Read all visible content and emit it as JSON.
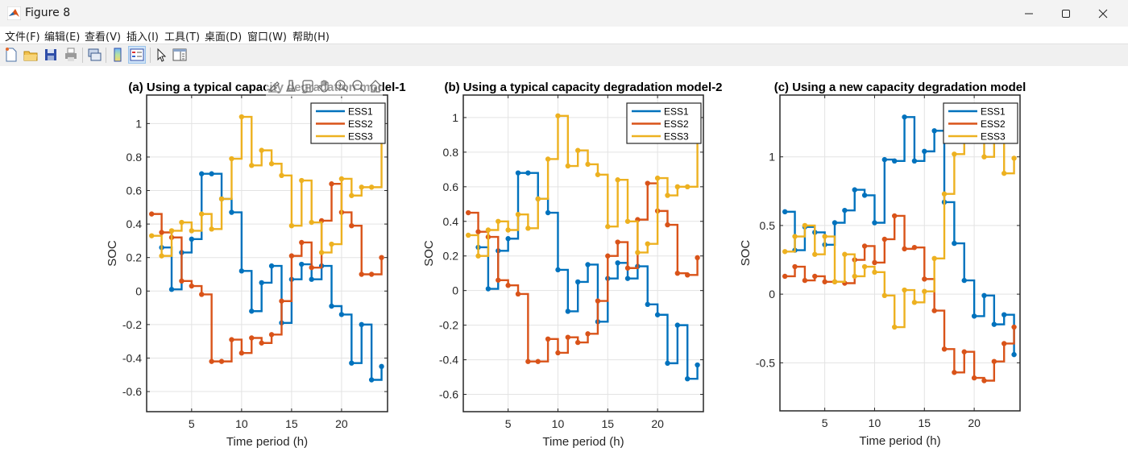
{
  "window": {
    "title": "Figure 8",
    "controls": [
      "minimize",
      "maximize",
      "close"
    ]
  },
  "menubar": {
    "items": [
      "文件(F)",
      "编辑(E)",
      "查看(V)",
      "插入(I)",
      "工具(T)",
      "桌面(D)",
      "窗口(W)",
      "帮助(H)"
    ]
  },
  "toolbar": {
    "buttons": [
      "new-figure-icon",
      "open-file-icon",
      "save-icon",
      "print-icon",
      "link-plot-icon",
      "colorbar-icon",
      "legend-icon",
      "edit-plot-pointer-icon",
      "property-inspector-icon"
    ],
    "active": "legend-icon"
  },
  "axes_toolbar": {
    "buttons": [
      "brush-edit-icon",
      "data-brush-icon",
      "data-tips-icon",
      "pan-hand-icon",
      "zoom-in-icon",
      "zoom-out-icon",
      "restore-view-home-icon"
    ]
  },
  "colors": {
    "ESS1": "#0072bd",
    "ESS2": "#d95319",
    "ESS3": "#edb120",
    "grid": "#e3e3e3",
    "axis": "#262626"
  },
  "chart_data": [
    {
      "type": "line",
      "style": "step-post with markers",
      "title": "(a) Using a typical capacity degradation model-1",
      "xlabel": "Time period (h)",
      "ylabel": "SOC",
      "xlim": [
        0.5,
        24.6
      ],
      "ylim": [
        -0.72,
        1.17
      ],
      "xticks": [
        5,
        10,
        15,
        20
      ],
      "yticks": [
        -0.6,
        -0.4,
        -0.2,
        0,
        0.2,
        0.4,
        0.6,
        0.8,
        1
      ],
      "ytick_labels": [
        "-0.6",
        "-0.4",
        "-0.2",
        "0",
        "0.2",
        "0.4",
        "0.6",
        "0.8",
        "1"
      ],
      "grid": true,
      "legend": {
        "entries": [
          "ESS1",
          "ESS2",
          "ESS3"
        ],
        "location": "top-right"
      },
      "x": [
        1,
        2,
        3,
        4,
        5,
        6,
        7,
        8,
        9,
        10,
        11,
        12,
        13,
        14,
        15,
        16,
        17,
        18,
        19,
        20,
        21,
        22,
        23,
        24
      ],
      "series": [
        {
          "name": "ESS1",
          "values": [
            null,
            0.26,
            0.01,
            0.23,
            0.31,
            0.7,
            0.7,
            0.55,
            0.47,
            0.12,
            -0.12,
            0.05,
            0.15,
            -0.19,
            0.07,
            0.16,
            0.07,
            0.15,
            -0.09,
            -0.14,
            -0.43,
            -0.2,
            -0.53,
            -0.45
          ]
        },
        {
          "name": "ESS2",
          "values": [
            0.46,
            0.35,
            0.32,
            0.06,
            0.03,
            -0.02,
            -0.42,
            -0.42,
            -0.29,
            -0.37,
            -0.28,
            -0.31,
            -0.26,
            -0.06,
            0.21,
            0.29,
            0.14,
            0.42,
            0.64,
            0.47,
            0.39,
            0.1,
            0.1,
            0.2
          ]
        },
        {
          "name": "ESS3",
          "values": [
            0.33,
            0.21,
            0.36,
            0.41,
            0.36,
            0.46,
            0.37,
            0.55,
            0.79,
            1.04,
            0.75,
            0.84,
            0.76,
            0.69,
            0.39,
            0.66,
            0.41,
            0.23,
            0.28,
            0.67,
            0.57,
            0.62,
            0.62,
            0.97
          ]
        }
      ]
    },
    {
      "type": "line",
      "style": "step-post with markers",
      "title": "(b) Using a typical capacity degradation model-2",
      "xlabel": "Time period (h)",
      "ylabel": "SOC",
      "xlim": [
        0.5,
        24.6
      ],
      "ylim": [
        -0.7,
        1.13
      ],
      "xticks": [
        5,
        10,
        15,
        20
      ],
      "yticks": [
        -0.6,
        -0.4,
        -0.2,
        0,
        0.2,
        0.4,
        0.6,
        0.8,
        1
      ],
      "ytick_labels": [
        "-0.6",
        "-0.4",
        "-0.2",
        "0",
        "0.2",
        "0.4",
        "0.6",
        "0.8",
        "1"
      ],
      "grid": true,
      "legend": {
        "entries": [
          "ESS1",
          "ESS2",
          "ESS3"
        ],
        "location": "top-right"
      },
      "x": [
        1,
        2,
        3,
        4,
        5,
        6,
        7,
        8,
        9,
        10,
        11,
        12,
        13,
        14,
        15,
        16,
        17,
        18,
        19,
        20,
        21,
        22,
        23,
        24
      ],
      "series": [
        {
          "name": "ESS1",
          "values": [
            null,
            0.25,
            0.01,
            0.23,
            0.3,
            0.68,
            0.68,
            0.53,
            0.45,
            0.12,
            -0.12,
            0.05,
            0.15,
            -0.18,
            0.07,
            0.16,
            0.07,
            0.14,
            -0.08,
            -0.14,
            -0.42,
            -0.2,
            -0.51,
            -0.43
          ]
        },
        {
          "name": "ESS2",
          "values": [
            0.45,
            0.34,
            0.31,
            0.06,
            0.03,
            -0.02,
            -0.41,
            -0.41,
            -0.28,
            -0.36,
            -0.27,
            -0.3,
            -0.25,
            -0.06,
            0.2,
            0.28,
            0.13,
            0.41,
            0.62,
            0.46,
            0.38,
            0.1,
            0.09,
            0.19
          ]
        },
        {
          "name": "ESS3",
          "values": [
            0.32,
            0.2,
            0.35,
            0.4,
            0.35,
            0.44,
            0.36,
            0.53,
            0.76,
            1.01,
            0.72,
            0.81,
            0.73,
            0.67,
            0.37,
            0.64,
            0.4,
            0.22,
            0.27,
            0.65,
            0.55,
            0.6,
            0.6,
            0.94
          ]
        }
      ]
    },
    {
      "type": "line",
      "style": "step-post with markers",
      "title": "(c) Using a new capacity degradation model",
      "xlabel": "Time period (h)",
      "ylabel": "SOC",
      "xlim": [
        0.5,
        24.6
      ],
      "ylim": [
        -0.85,
        1.45
      ],
      "xticks": [
        5,
        10,
        15,
        20
      ],
      "yticks": [
        -0.5,
        0,
        0.5,
        1
      ],
      "ytick_labels": [
        "-0.5",
        "0",
        "0.5",
        "1"
      ],
      "grid": true,
      "legend": {
        "entries": [
          "ESS1",
          "ESS2",
          "ESS3"
        ],
        "location": "top-right"
      },
      "x": [
        1,
        2,
        3,
        4,
        5,
        6,
        7,
        8,
        9,
        10,
        11,
        12,
        13,
        14,
        15,
        16,
        17,
        18,
        19,
        20,
        21,
        22,
        23,
        24
      ],
      "series": [
        {
          "name": "ESS1",
          "values": [
            0.6,
            0.32,
            0.49,
            0.45,
            0.36,
            0.52,
            0.61,
            0.76,
            0.72,
            0.52,
            0.98,
            0.97,
            1.29,
            0.97,
            1.04,
            1.19,
            0.67,
            0.37,
            0.1,
            -0.16,
            -0.01,
            -0.22,
            -0.15,
            -0.44
          ]
        },
        {
          "name": "ESS2",
          "values": [
            0.13,
            0.2,
            0.1,
            0.13,
            0.09,
            0.09,
            0.08,
            0.25,
            0.35,
            0.23,
            0.4,
            0.57,
            0.33,
            0.34,
            0.11,
            -0.12,
            -0.4,
            -0.57,
            -0.42,
            -0.61,
            -0.63,
            -0.49,
            -0.36,
            -0.24
          ]
        },
        {
          "name": "ESS3",
          "values": [
            0.31,
            0.42,
            0.5,
            0.29,
            0.42,
            0.09,
            0.29,
            0.13,
            0.2,
            0.16,
            -0.01,
            -0.24,
            0.03,
            -0.06,
            0.02,
            0.26,
            0.73,
            1.02,
            1.2,
            1.12,
            1.0,
            1.12,
            0.88,
            0.99
          ]
        }
      ]
    }
  ]
}
